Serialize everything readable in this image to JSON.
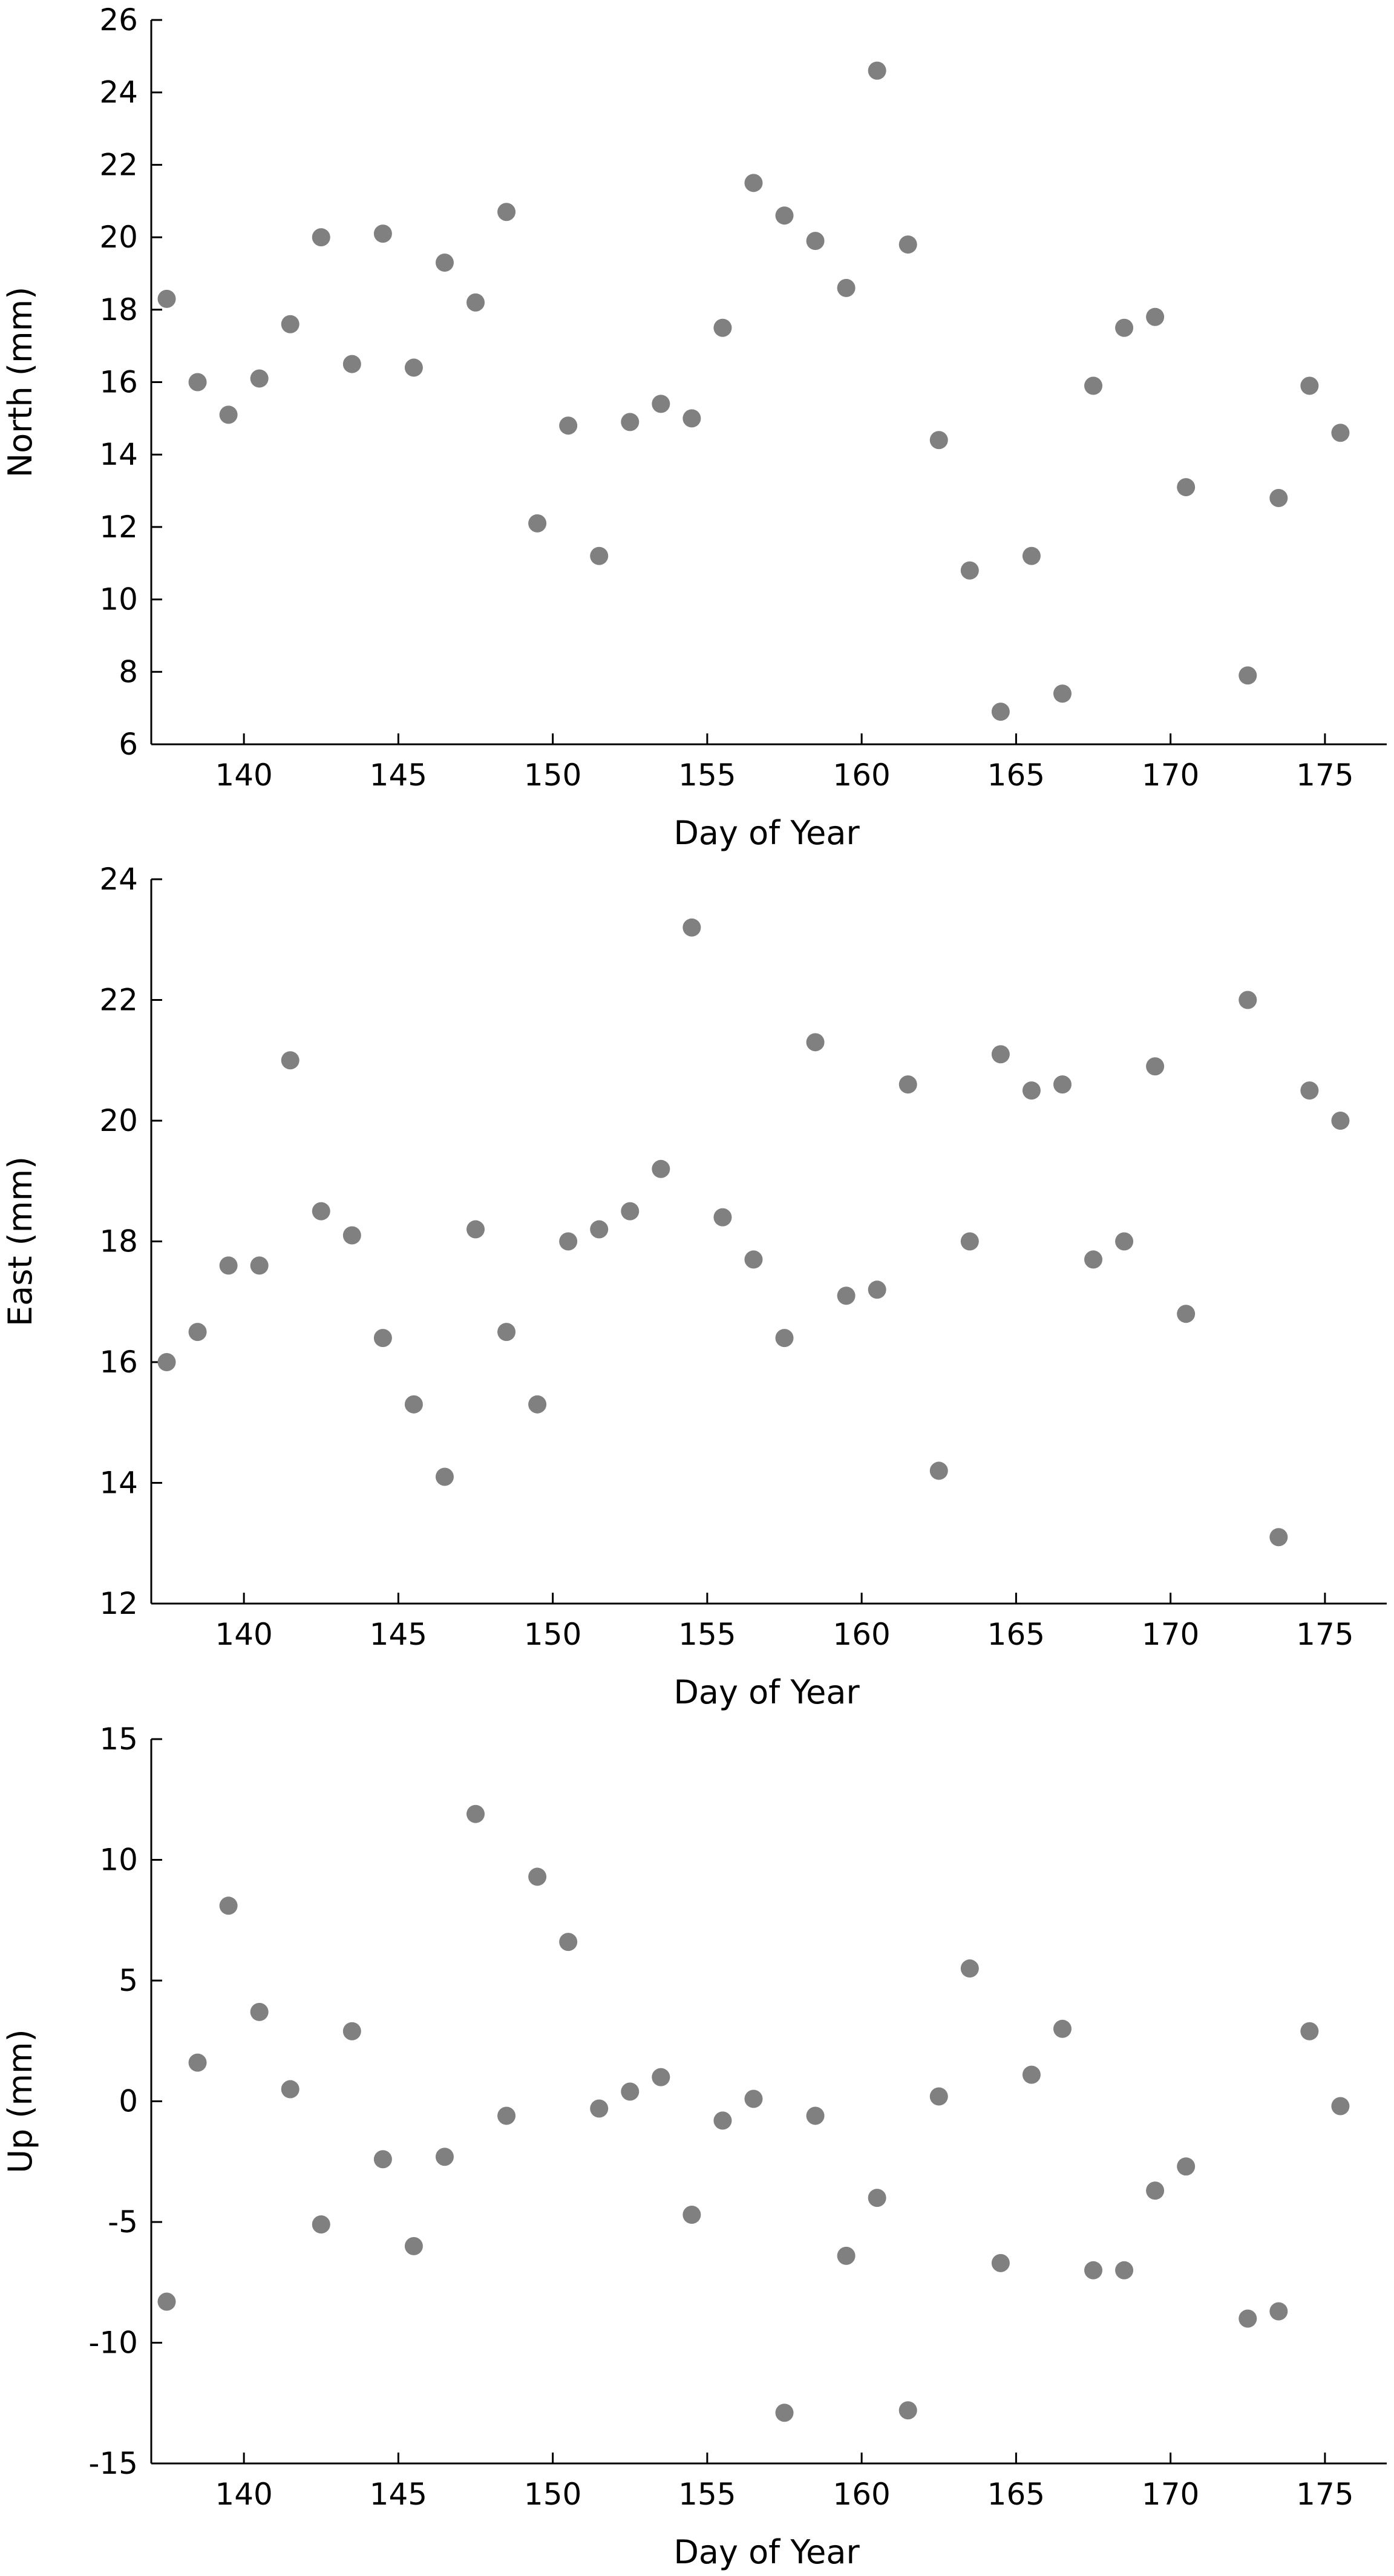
{
  "chart_data": [
    {
      "type": "scatter",
      "title": "",
      "xlabel": "Day of Year",
      "ylabel": "North (mm)",
      "xlim": [
        137,
        177
      ],
      "ylim": [
        6,
        26
      ],
      "xticks": [
        140,
        145,
        150,
        155,
        160,
        165,
        170,
        175
      ],
      "yticks": [
        6,
        8,
        10,
        12,
        14,
        16,
        18,
        20,
        22,
        24,
        26
      ],
      "marker_color": "#808080",
      "grid": false,
      "series": [
        {
          "x": [
            137.5,
            138.5,
            139.5,
            140.5,
            141.5,
            142.5,
            143.5,
            144.5,
            145.5,
            146.5,
            147.5,
            148.5,
            149.5,
            150.5,
            151.5,
            152.5,
            153.5,
            154.5,
            155.5,
            156.5,
            157.5,
            158.5,
            159.5,
            160.5,
            161.5,
            162.5,
            163.5,
            164.5,
            165.5,
            166.5,
            167.5,
            168.5,
            169.5,
            170.5,
            172.5,
            173.5,
            174.5,
            175.5
          ],
          "y": [
            18.3,
            16.0,
            15.1,
            16.1,
            17.6,
            20.0,
            16.5,
            20.1,
            16.4,
            19.3,
            18.2,
            20.7,
            12.1,
            14.8,
            11.2,
            14.9,
            15.4,
            15.0,
            17.5,
            21.5,
            20.6,
            19.9,
            18.6,
            24.6,
            19.8,
            14.4,
            10.8,
            6.9,
            11.2,
            7.4,
            15.9,
            17.5,
            17.8,
            13.1,
            7.9,
            12.8,
            15.9,
            14.6
          ]
        }
      ]
    },
    {
      "type": "scatter",
      "title": "",
      "xlabel": "Day of Year",
      "ylabel": "East (mm)",
      "xlim": [
        137,
        177
      ],
      "ylim": [
        12,
        24
      ],
      "xticks": [
        140,
        145,
        150,
        155,
        160,
        165,
        170,
        175
      ],
      "yticks": [
        12,
        14,
        16,
        18,
        20,
        22,
        24
      ],
      "marker_color": "#808080",
      "grid": false,
      "series": [
        {
          "x": [
            137.5,
            138.5,
            139.5,
            140.5,
            141.5,
            142.5,
            143.5,
            144.5,
            145.5,
            146.5,
            147.5,
            148.5,
            149.5,
            150.5,
            151.5,
            152.5,
            153.5,
            154.5,
            155.5,
            156.5,
            157.5,
            158.5,
            159.5,
            160.5,
            161.5,
            162.5,
            163.5,
            164.5,
            165.5,
            166.5,
            167.5,
            168.5,
            169.5,
            170.5,
            172.5,
            173.5,
            174.5,
            175.5
          ],
          "y": [
            16.0,
            16.5,
            17.6,
            17.6,
            21.0,
            18.5,
            18.1,
            16.4,
            15.3,
            14.1,
            18.2,
            16.5,
            15.3,
            18.0,
            18.2,
            18.5,
            19.2,
            23.2,
            18.4,
            17.7,
            16.4,
            21.3,
            17.1,
            17.2,
            20.6,
            14.2,
            18.0,
            21.1,
            20.5,
            20.6,
            17.7,
            18.0,
            20.9,
            16.8,
            22.0,
            13.1,
            20.5,
            20.0
          ]
        }
      ]
    },
    {
      "type": "scatter",
      "title": "",
      "xlabel": "Day of Year",
      "ylabel": "Up (mm)",
      "xlim": [
        137,
        177
      ],
      "ylim": [
        -15,
        15
      ],
      "xticks": [
        140,
        145,
        150,
        155,
        160,
        165,
        170,
        175
      ],
      "yticks": [
        -15,
        -10,
        -5,
        0,
        5,
        10,
        15
      ],
      "marker_color": "#808080",
      "grid": false,
      "series": [
        {
          "x": [
            137.5,
            138.5,
            139.5,
            140.5,
            141.5,
            142.5,
            143.5,
            144.5,
            145.5,
            146.5,
            147.5,
            148.5,
            149.5,
            150.5,
            151.5,
            152.5,
            153.5,
            154.5,
            155.5,
            156.5,
            157.5,
            158.5,
            159.5,
            160.5,
            161.5,
            162.5,
            163.5,
            164.5,
            165.5,
            166.5,
            167.5,
            168.5,
            169.5,
            170.5,
            172.5,
            173.5,
            174.5,
            175.5
          ],
          "y": [
            -8.3,
            1.6,
            8.1,
            3.7,
            0.5,
            -5.1,
            2.9,
            -2.4,
            -6.0,
            -2.3,
            11.9,
            -0.6,
            9.3,
            6.6,
            -0.3,
            0.4,
            1.0,
            -4.7,
            -0.8,
            0.1,
            -12.9,
            -0.6,
            -6.4,
            -4.0,
            -12.8,
            0.2,
            5.5,
            -6.7,
            1.1,
            3.0,
            -7.0,
            -7.0,
            -3.7,
            -2.7,
            -9.0,
            -8.7,
            2.9,
            -0.2
          ]
        }
      ]
    }
  ]
}
